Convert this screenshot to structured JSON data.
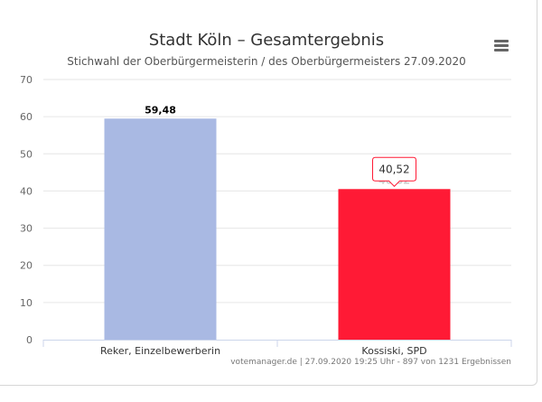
{
  "chart_data": {
    "type": "bar",
    "title": "Stadt Köln – Gesamtergebnis",
    "subtitle": "Stichwahl der Oberbürgermeisterin / des Oberbürgermeisters 27.09.2020",
    "categories": [
      "Reker, Einzelbewerberin",
      "Kossiski, SPD"
    ],
    "values": [
      59.48,
      40.52
    ],
    "value_labels": [
      "59,48",
      "40,52"
    ],
    "bar_colors": [
      "#a9b9e3",
      "#ff1a35"
    ],
    "ylim": [
      0,
      70
    ],
    "yticks": [
      "0",
      "10",
      "20",
      "30",
      "40",
      "50",
      "60",
      "70"
    ],
    "grid": true,
    "tooltip": {
      "category_index": 1,
      "text": "40,52",
      "border_color": "#ff1a35"
    },
    "credits": "votemanager.de | 27.09.2020 19:25 Uhr - 897 von 1231 Ergebnissen"
  },
  "menu": {
    "icon": "hamburger-menu-icon"
  }
}
